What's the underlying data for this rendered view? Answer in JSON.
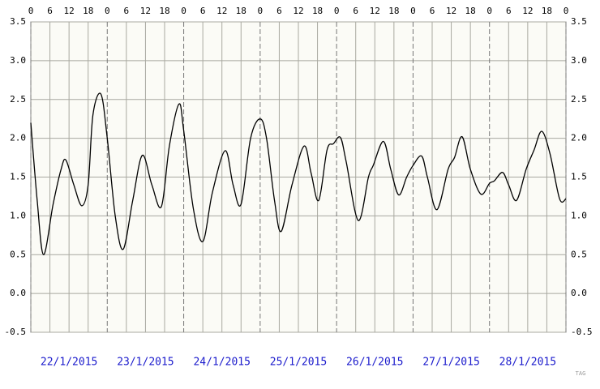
{
  "chart_data": {
    "type": "line",
    "xlim": [
      0,
      168
    ],
    "xticks": [
      0,
      {
        "value": 6,
        "label": "6"
      },
      {
        "value": 12,
        "label": "12"
      },
      {
        "value": 18,
        "label": "18"
      },
      {
        "value": 24,
        "label": "0"
      },
      {
        "value": 30,
        "label": "6"
      },
      {
        "value": 36,
        "label": "12"
      },
      {
        "value": 42,
        "label": "18"
      },
      {
        "value": 48,
        "label": "0"
      },
      {
        "value": 54,
        "label": "6"
      },
      {
        "value": 60,
        "label": "12"
      },
      {
        "value": 66,
        "label": "18"
      },
      {
        "value": 72,
        "label": "0"
      },
      {
        "value": 78,
        "label": "6"
      },
      {
        "value": 84,
        "label": "12"
      },
      {
        "value": 90,
        "label": "18"
      },
      {
        "value": 96,
        "label": "0"
      },
      {
        "value": 102,
        "label": "6"
      },
      {
        "value": 108,
        "label": "12"
      },
      {
        "value": 114,
        "label": "18"
      },
      {
        "value": 120,
        "label": "0"
      },
      {
        "value": 126,
        "label": "6"
      },
      {
        "value": 132,
        "label": "12"
      },
      {
        "value": 138,
        "label": "18"
      },
      {
        "value": 144,
        "label": "0"
      },
      {
        "value": 150,
        "label": "6"
      },
      {
        "value": 156,
        "label": "12"
      },
      {
        "value": 162,
        "label": "18"
      },
      {
        "value": 168,
        "label": "0"
      }
    ],
    "ylim": [
      -0.5,
      3.5
    ],
    "yticks": [
      -0.5,
      {
        "value": 0,
        "label": "0.0"
      },
      0.5,
      {
        "value": 1,
        "label": "1.0"
      },
      1.5,
      {
        "value": 2,
        "label": "2.0"
      },
      2.5,
      {
        "value": 3,
        "label": "3.0"
      },
      3.5
    ],
    "day_labels": [
      "22/1/2015",
      "23/1/2015",
      "24/1/2015",
      "25/1/2015",
      "26/1/2015",
      "27/1/2015",
      "28/1/2015"
    ],
    "grid": true,
    "series": [
      {
        "color": "#000000",
        "x": [
          0,
          2,
          4,
          7,
          9.5,
          11,
          13.5,
          16,
          18,
          19.5,
          22,
          24,
          26.5,
          29,
          32,
          35,
          38,
          41,
          43.5,
          46.5,
          48,
          51,
          54,
          57,
          61,
          63.5,
          66,
          69,
          72,
          74,
          76.5,
          78.6,
          82,
          85.8,
          88,
          90.4,
          93,
          95,
          97.2,
          99,
          102.8,
          106,
          107.5,
          110.7,
          113,
          115.5,
          118,
          120,
          122.7,
          124.5,
          127.5,
          131,
          133,
          135.4,
          138,
          141.3,
          144,
          145.5,
          148.1,
          150,
          152.5,
          155.5,
          158,
          160.4,
          163,
          166,
          168
        ],
        "values": [
          2.2,
          1.2,
          0.5,
          1.15,
          1.6,
          1.72,
          1.4,
          1.13,
          1.4,
          2.3,
          2.57,
          2.0,
          1.0,
          0.57,
          1.2,
          1.78,
          1.4,
          1.12,
          1.9,
          2.44,
          2.1,
          1.1,
          0.67,
          1.3,
          1.84,
          1.4,
          1.15,
          2.0,
          2.25,
          2.0,
          1.2,
          0.8,
          1.4,
          1.9,
          1.55,
          1.2,
          1.85,
          1.93,
          2.01,
          1.7,
          0.94,
          1.5,
          1.65,
          1.96,
          1.6,
          1.27,
          1.5,
          1.65,
          1.77,
          1.5,
          1.08,
          1.6,
          1.75,
          2.02,
          1.6,
          1.28,
          1.42,
          1.45,
          1.56,
          1.4,
          1.2,
          1.6,
          1.85,
          2.09,
          1.8,
          1.22,
          1.22
        ]
      }
    ],
    "watermark": "TAG"
  }
}
